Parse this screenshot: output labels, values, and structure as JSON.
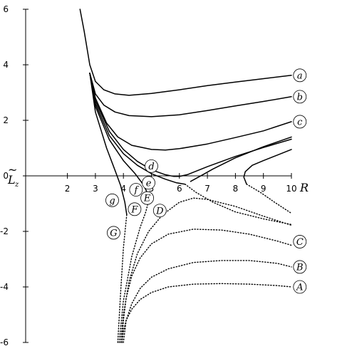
{
  "chart_data": {
    "type": "line",
    "title": "",
    "xlabel": "R",
    "ylabel_main": "L",
    "ylabel_accent": "~",
    "ylabel_sub": "z",
    "xlim": [
      0,
      10
    ],
    "ylim": [
      -6,
      6
    ],
    "grid": false,
    "x_ticks": [
      2,
      3,
      4,
      5,
      6,
      7,
      8,
      9,
      10
    ],
    "y_ticks": [
      6,
      4,
      2,
      0,
      -2,
      -4,
      -6
    ],
    "x_tick_labels": [
      "2",
      "3",
      "4",
      "5",
      "6",
      "7",
      "8",
      "9",
      "10"
    ],
    "y_tick_labels": [
      "6",
      "4",
      "2",
      "0",
      "-2",
      "-4",
      "-6"
    ],
    "series": [
      {
        "name": "a",
        "style": "solid",
        "x": [
          2.45,
          2.6,
          2.8,
          3.0,
          3.3,
          3.7,
          4.2,
          5.0,
          6.0,
          7.0,
          8.0,
          9.0,
          10.0
        ],
        "y": [
          6.0,
          5.2,
          4.0,
          3.4,
          3.1,
          2.95,
          2.9,
          2.97,
          3.1,
          3.25,
          3.38,
          3.5,
          3.62
        ]
      },
      {
        "name": "b",
        "style": "solid",
        "x": [
          2.8,
          3.0,
          3.3,
          3.7,
          4.2,
          5.0,
          6.0,
          7.0,
          8.0,
          9.0,
          10.0
        ],
        "y": [
          3.7,
          2.95,
          2.55,
          2.3,
          2.17,
          2.13,
          2.2,
          2.35,
          2.52,
          2.68,
          2.85
        ]
      },
      {
        "name": "c",
        "style": "solid",
        "x": [
          2.8,
          3.0,
          3.4,
          3.8,
          4.3,
          5.0,
          5.5,
          6.0,
          7.0,
          8.0,
          9.0,
          10.0
        ],
        "y": [
          3.7,
          2.8,
          1.9,
          1.4,
          1.1,
          0.95,
          0.93,
          0.98,
          1.15,
          1.38,
          1.62,
          1.95
        ]
      },
      {
        "name": "d",
        "style": "solid",
        "x": [
          2.8,
          3.0,
          3.5,
          4.0,
          4.5,
          5.0,
          5.5,
          5.8,
          6.0,
          6.3,
          7.0,
          8.0,
          9.0,
          10.0
        ],
        "y": [
          3.7,
          2.7,
          1.6,
          0.95,
          0.52,
          0.22,
          0.04,
          -0.02,
          -0.02,
          0.05,
          0.33,
          0.7,
          1.02,
          1.32
        ]
      },
      {
        "name": "e_inner",
        "style": "solid",
        "x": [
          2.8,
          3.0,
          3.5,
          4.0,
          4.5,
          5.0,
          5.5,
          5.9,
          6.2
        ],
        "y": [
          3.7,
          2.6,
          1.45,
          0.8,
          0.38,
          0.08,
          -0.12,
          -0.25,
          -0.3
        ]
      },
      {
        "name": "e_outer",
        "style": "solid",
        "x": [
          6.4,
          6.8,
          7.2,
          8.0,
          9.0,
          10.0
        ],
        "y": [
          -0.2,
          0.02,
          0.25,
          0.65,
          1.05,
          1.4
        ]
      },
      {
        "name": "f",
        "style": "solid",
        "x": [
          2.8,
          3.0,
          3.5,
          4.0,
          4.4,
          4.7,
          4.85,
          4.9
        ],
        "y": [
          3.7,
          2.5,
          1.3,
          0.55,
          0.1,
          -0.3,
          -0.6,
          -0.9
        ]
      },
      {
        "name": "g",
        "style": "solid",
        "x": [
          2.8,
          3.0,
          3.4,
          3.7,
          3.9,
          4.05,
          4.12
        ],
        "y": [
          3.7,
          2.3,
          1.0,
          0.2,
          -0.35,
          -0.95,
          -1.4
        ]
      },
      {
        "name": "g_outer",
        "style": "solid",
        "x": [
          8.4,
          8.3,
          8.35,
          8.6,
          9.0,
          9.5,
          10.0
        ],
        "y": [
          -0.3,
          -0.05,
          0.15,
          0.38,
          0.55,
          0.75,
          0.95
        ]
      },
      {
        "name": "A",
        "style": "dotted",
        "x": [
          3.95,
          4.0,
          4.1,
          4.3,
          4.6,
          5.0,
          5.6,
          6.5,
          7.5,
          8.5,
          9.5,
          10.0
        ],
        "y": [
          -6.0,
          -5.6,
          -5.2,
          -4.8,
          -4.45,
          -4.2,
          -4.0,
          -3.9,
          -3.88,
          -3.9,
          -3.95,
          -4.0
        ]
      },
      {
        "name": "B",
        "style": "dotted",
        "x": [
          4.0,
          4.1,
          4.3,
          4.6,
          5.0,
          5.6,
          6.5,
          7.5,
          8.5,
          9.5,
          10.0
        ],
        "y": [
          -6.0,
          -5.2,
          -4.6,
          -4.05,
          -3.65,
          -3.35,
          -3.12,
          -3.05,
          -3.05,
          -3.15,
          -3.28
        ]
      },
      {
        "name": "C",
        "style": "dotted",
        "x": [
          3.95,
          4.0,
          4.1,
          4.3,
          4.6,
          5.0,
          5.6,
          6.5,
          7.5,
          8.5,
          9.5,
          10.0
        ],
        "y": [
          -6.0,
          -5.2,
          -4.4,
          -3.6,
          -2.95,
          -2.45,
          -2.1,
          -1.92,
          -1.95,
          -2.1,
          -2.35,
          -2.5
        ]
      },
      {
        "name": "D",
        "style": "dotted",
        "x": [
          6.2,
          6.6,
          7.2,
          8.0,
          9.0,
          10.0
        ],
        "y": [
          -0.3,
          -0.6,
          -0.95,
          -1.3,
          -1.55,
          -1.75
        ]
      },
      {
        "name": "E",
        "style": "dotted",
        "x": [
          3.9,
          4.0,
          4.2,
          4.5,
          4.9,
          5.4,
          6.0,
          6.5,
          7.0,
          8.0,
          9.0,
          10.0
        ],
        "y": [
          -6.0,
          -5.0,
          -3.8,
          -2.8,
          -2.0,
          -1.4,
          -0.95,
          -0.8,
          -0.85,
          -1.1,
          -1.45,
          -1.78
        ]
      },
      {
        "name": "F",
        "style": "dotted",
        "x": [
          3.85,
          4.0,
          4.3,
          4.6,
          4.8,
          4.9
        ],
        "y": [
          -6.0,
          -4.5,
          -2.9,
          -1.85,
          -1.3,
          -0.9
        ]
      },
      {
        "name": "G",
        "style": "dotted",
        "x": [
          3.8,
          3.9,
          4.0,
          4.08,
          4.12
        ],
        "y": [
          -6.0,
          -4.2,
          -2.6,
          -1.8,
          -1.4
        ]
      },
      {
        "name": "G_outer",
        "style": "dotted",
        "x": [
          8.4,
          8.9,
          9.4,
          10.0
        ],
        "y": [
          -0.3,
          -0.6,
          -0.95,
          -1.35
        ]
      }
    ],
    "curve_labels": [
      {
        "text": "a",
        "x": 10.3,
        "y": 3.62
      },
      {
        "text": "b",
        "x": 10.3,
        "y": 2.85
      },
      {
        "text": "c",
        "x": 10.3,
        "y": 1.95
      },
      {
        "text": "d",
        "x": 5.0,
        "y": 0.35
      },
      {
        "text": "e",
        "x": 4.9,
        "y": -0.25
      },
      {
        "text": "f",
        "x": 4.45,
        "y": -0.5
      },
      {
        "text": "g",
        "x": 3.6,
        "y": -0.88
      },
      {
        "text": "A",
        "x": 10.3,
        "y": -4.0
      },
      {
        "text": "B",
        "x": 10.3,
        "y": -3.28
      },
      {
        "text": "C",
        "x": 10.3,
        "y": -2.37
      },
      {
        "text": "D",
        "x": 5.3,
        "y": -1.25
      },
      {
        "text": "E",
        "x": 4.85,
        "y": -0.8
      },
      {
        "text": "F",
        "x": 4.4,
        "y": -1.2
      },
      {
        "text": "G",
        "x": 3.65,
        "y": -2.05
      }
    ]
  }
}
